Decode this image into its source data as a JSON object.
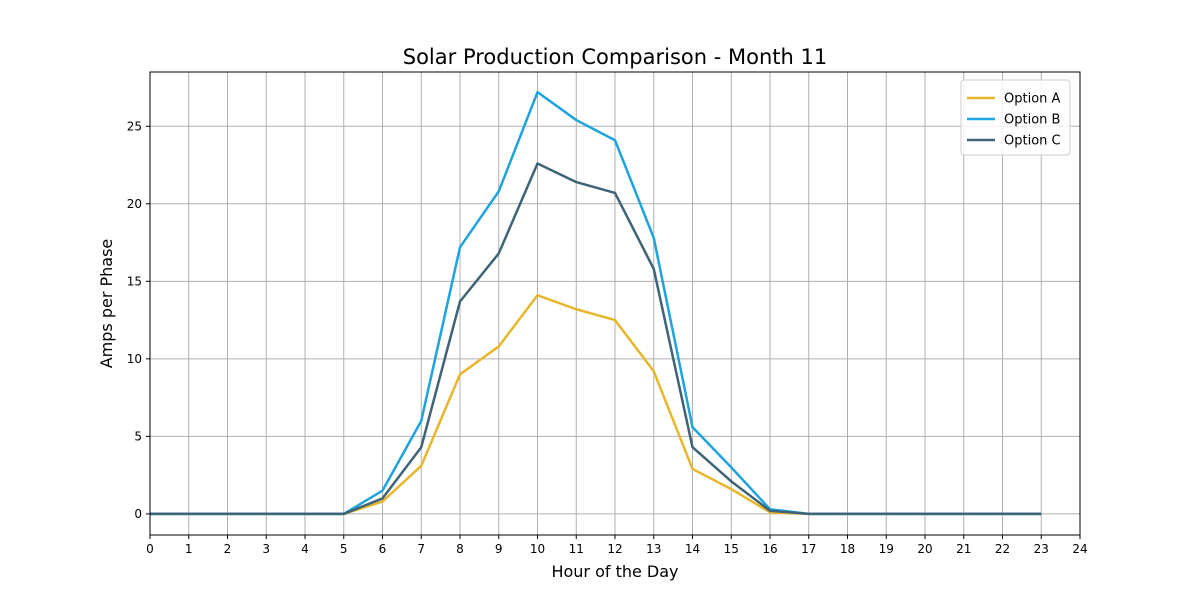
{
  "chart_data": {
    "type": "line",
    "title": "Solar Production Comparison - Month 11",
    "xlabel": "Hour of the Day",
    "ylabel": "Amps per Phase",
    "xlim": [
      0,
      24
    ],
    "ylim": [
      -1.36,
      28.5
    ],
    "x_ticks": [
      "0",
      "1",
      "2",
      "3",
      "4",
      "5",
      "6",
      "7",
      "8",
      "9",
      "10",
      "11",
      "12",
      "13",
      "14",
      "15",
      "16",
      "17",
      "18",
      "19",
      "20",
      "21",
      "22",
      "23",
      "24"
    ],
    "y_ticks": [
      "0",
      "5",
      "10",
      "15",
      "20",
      "25"
    ],
    "grid": true,
    "legend_position": "top-right",
    "x": [
      0,
      1,
      2,
      3,
      4,
      5,
      6,
      7,
      8,
      9,
      10,
      11,
      12,
      13,
      14,
      15,
      16,
      17,
      18,
      19,
      20,
      21,
      22,
      23
    ],
    "series": [
      {
        "name": "Option A",
        "color": "#E8B62B",
        "values": [
          0,
          0,
          0,
          0,
          0,
          0,
          0.8,
          3.1,
          9.0,
          10.8,
          14.1,
          13.2,
          12.5,
          9.2,
          2.9,
          1.6,
          0.1,
          0,
          0,
          0,
          0,
          0,
          0,
          0
        ]
      },
      {
        "name": "Option B",
        "color": "#1FA3DC",
        "values": [
          0,
          0,
          0,
          0,
          0,
          0,
          1.5,
          6.0,
          17.2,
          20.8,
          27.2,
          25.4,
          24.1,
          17.8,
          5.6,
          3.0,
          0.3,
          0,
          0,
          0,
          0,
          0,
          0,
          0
        ]
      },
      {
        "name": "Option C",
        "color": "#3F6377",
        "values": [
          0,
          0,
          0,
          0,
          0,
          0,
          1.0,
          4.3,
          13.7,
          16.8,
          22.6,
          21.4,
          20.7,
          15.8,
          4.3,
          2.1,
          0.2,
          0,
          0,
          0,
          0,
          0,
          0,
          0
        ]
      }
    ]
  }
}
